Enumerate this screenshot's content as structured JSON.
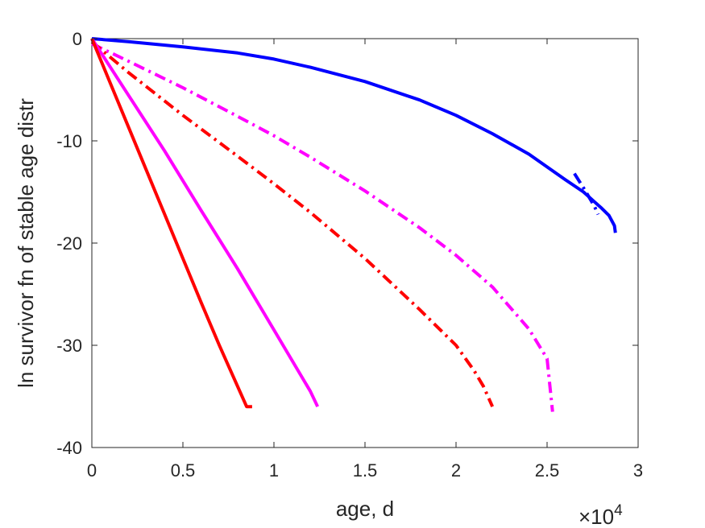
{
  "chart_data": {
    "type": "line",
    "xlabel": "age, d",
    "ylabel": "ln survivor fn of stable age distr",
    "x_multiplier_label": "×10",
    "x_multiplier_exp": "4",
    "xlim": [
      0,
      30000
    ],
    "ylim": [
      -40,
      0
    ],
    "xticks": [
      0,
      5000,
      10000,
      15000,
      20000,
      25000,
      30000
    ],
    "xtick_labels": [
      "0",
      "0.5",
      "1",
      "1.5",
      "2",
      "2.5",
      "3"
    ],
    "yticks": [
      0,
      -10,
      -20,
      -30,
      -40
    ],
    "ytick_labels": [
      "0",
      "-10",
      "-20",
      "-30",
      "-40"
    ],
    "grid": false,
    "series": [
      {
        "color": "#0000ff",
        "style": "solid",
        "x": [
          0,
          2000,
          5000,
          8000,
          10000,
          12000,
          15000,
          18000,
          20000,
          22000,
          24000,
          26000,
          27000,
          27500,
          28000,
          28400,
          28700,
          28750
        ],
        "y": [
          0,
          -0.3,
          -0.8,
          -1.4,
          -2.0,
          -2.8,
          -4.2,
          -6.0,
          -7.5,
          -9.3,
          -11.3,
          -13.8,
          -15.0,
          -15.8,
          -16.6,
          -17.3,
          -18.3,
          -19.0
        ]
      },
      {
        "color": "#0000ff",
        "style": "dashdot",
        "x": [
          26500,
          27000,
          27300,
          27600,
          27800
        ],
        "y": [
          -13.2,
          -14.6,
          -15.5,
          -16.4,
          -17.2
        ]
      },
      {
        "color": "#ff00ff",
        "style": "dashdot",
        "x": [
          0,
          2000,
          5000,
          8000,
          10000,
          12000,
          15000,
          18000,
          20000,
          22000,
          24000,
          25000,
          25300
        ],
        "y": [
          -0.5,
          -2.2,
          -4.8,
          -7.6,
          -9.5,
          -11.6,
          -14.9,
          -18.5,
          -21.2,
          -24.3,
          -28.4,
          -31.3,
          -36.5
        ]
      },
      {
        "color": "#ff0000",
        "style": "dashdot",
        "x": [
          0,
          2000,
          5000,
          8000,
          10000,
          12000,
          15000,
          18000,
          20000,
          21000,
          21500,
          22000
        ],
        "y": [
          -0.3,
          -3.3,
          -7.5,
          -11.5,
          -14.2,
          -17.0,
          -21.5,
          -26.5,
          -30.0,
          -32.5,
          -34.0,
          -36.0
        ]
      },
      {
        "color": "#ff00ff",
        "style": "solid",
        "x": [
          0,
          2000,
          4000,
          6000,
          8000,
          10000,
          11500,
          12000,
          12400
        ],
        "y": [
          0,
          -5.5,
          -11.0,
          -16.8,
          -22.5,
          -28.5,
          -33.0,
          -34.5,
          -36.0
        ]
      },
      {
        "color": "#ff0000",
        "style": "solid",
        "x": [
          0,
          1000,
          2000,
          3000,
          4000,
          5000,
          6000,
          7000,
          7500,
          8000,
          8500,
          8800
        ],
        "y": [
          0,
          -4.3,
          -8.6,
          -12.9,
          -17.2,
          -21.5,
          -25.8,
          -30.0,
          -32.0,
          -34.0,
          -36.0,
          -36.0
        ]
      }
    ]
  }
}
